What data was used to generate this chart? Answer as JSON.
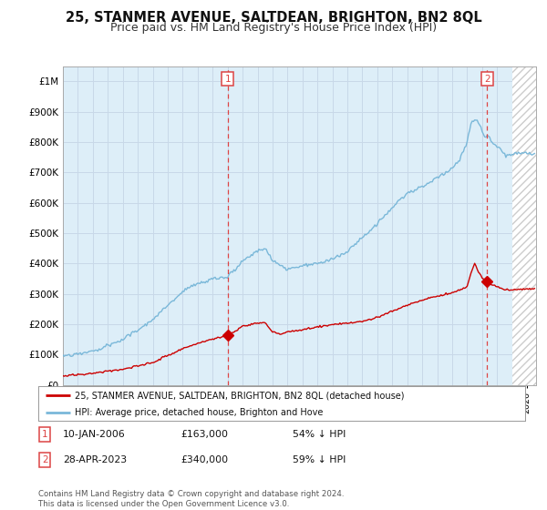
{
  "title": "25, STANMER AVENUE, SALTDEAN, BRIGHTON, BN2 8QL",
  "subtitle": "Price paid vs. HM Land Registry's House Price Index (HPI)",
  "title_fontsize": 10.5,
  "subtitle_fontsize": 9,
  "hpi_color": "#7ab8d9",
  "hpi_fill_color": "#ddeef8",
  "price_color": "#cc0000",
  "vline_color": "#dd4444",
  "background_color": "#ffffff",
  "grid_color": "#c8d8e8",
  "point1_price": 163000,
  "point2_price": 340000,
  "ytick_labels": [
    "£0",
    "£100K",
    "£200K",
    "£300K",
    "£400K",
    "£500K",
    "£600K",
    "£700K",
    "£800K",
    "£900K",
    "£1M"
  ],
  "legend_label1": "25, STANMER AVENUE, SALTDEAN, BRIGHTON, BN2 8QL (detached house)",
  "legend_label2": "HPI: Average price, detached house, Brighton and Hove",
  "table_row1": [
    "1",
    "10-JAN-2006",
    "£163,000",
    "54% ↓ HPI"
  ],
  "table_row2": [
    "2",
    "28-APR-2023",
    "£340,000",
    "59% ↓ HPI"
  ],
  "footer": "Contains HM Land Registry data © Crown copyright and database right 2024.\nThis data is licensed under the Open Government Licence v3.0."
}
